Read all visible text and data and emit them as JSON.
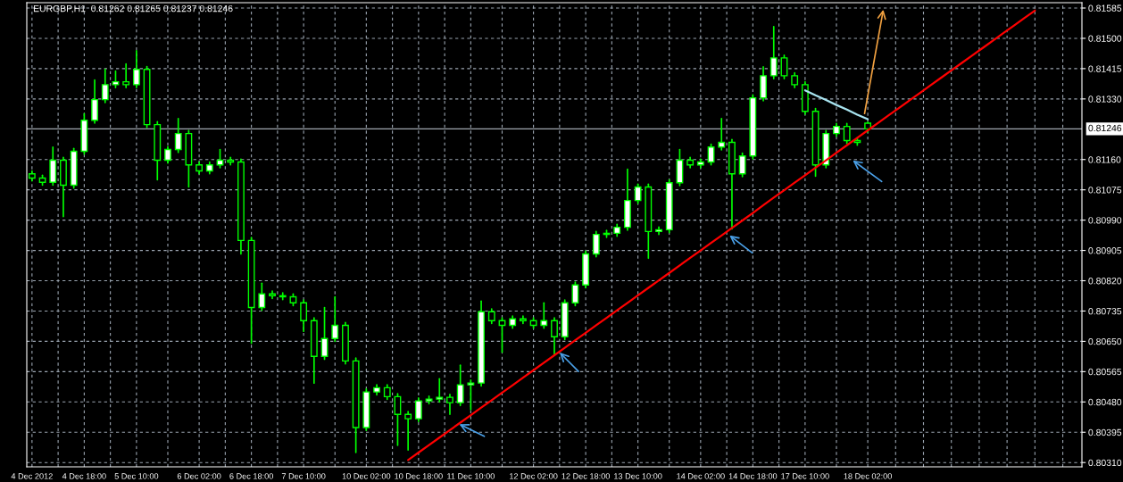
{
  "chart_data": {
    "type": "candlestick",
    "title": "EURGBP,H1  0.81262 0.81265 0.81237 0.81246",
    "categories": [
      "4 Dec 2012",
      null,
      null,
      null,
      null,
      "4 Dec 18:00",
      null,
      null,
      null,
      null,
      "5 Dec 10:00",
      null,
      null,
      null,
      null,
      null,
      "6 Dec 02:00",
      null,
      null,
      null,
      null,
      "6 Dec 18:00",
      null,
      null,
      null,
      null,
      "7 Dec 10:00",
      null,
      null,
      null,
      null,
      null,
      "10 Dec 02:00",
      null,
      null,
      null,
      null,
      "10 Dec 18:00",
      null,
      null,
      null,
      null,
      "11 Dec 10:00",
      null,
      null,
      null,
      null,
      null,
      "12 Dec 02:00",
      null,
      null,
      null,
      null,
      "12 Dec 18:00",
      null,
      null,
      null,
      null,
      "13 Dec 10:00",
      null,
      null,
      null,
      null,
      null,
      "14 Dec 02:00",
      null,
      null,
      null,
      null,
      "14 Dec 18:00",
      null,
      null,
      null,
      null,
      "17 Dec 10:00",
      null,
      null,
      null,
      null,
      null,
      "18 Dec 02:00",
      null,
      null,
      null,
      null,
      null,
      null,
      null,
      null,
      null,
      null,
      null,
      null,
      null,
      null,
      null,
      null,
      null,
      null,
      null,
      null
    ],
    "ohlc": [
      [
        0.8112,
        0.81128,
        0.811,
        0.81108
      ],
      [
        0.81108,
        0.81116,
        0.81088,
        0.81096
      ],
      [
        0.81096,
        0.81195,
        0.81088,
        0.81158
      ],
      [
        0.81158,
        0.81166,
        0.81,
        0.81088
      ],
      [
        0.81088,
        0.81191,
        0.8108,
        0.81183
      ],
      [
        0.81183,
        0.81288,
        0.81175,
        0.8127
      ],
      [
        0.8127,
        0.81383,
        0.81262,
        0.81328
      ],
      [
        0.81328,
        0.81413,
        0.8132,
        0.8137
      ],
      [
        0.8137,
        0.81408,
        0.81362,
        0.81378
      ],
      [
        0.81378,
        0.81428,
        0.81362,
        0.8137
      ],
      [
        0.8137,
        0.81465,
        0.81362,
        0.81413
      ],
      [
        0.81413,
        0.81421,
        0.8125,
        0.81258
      ],
      [
        0.81258,
        0.81266,
        0.81103,
        0.81158
      ],
      [
        0.81158,
        0.81196,
        0.8115,
        0.81188
      ],
      [
        0.81188,
        0.81275,
        0.8118,
        0.81233
      ],
      [
        0.81233,
        0.81241,
        0.81083,
        0.81145
      ],
      [
        0.81145,
        0.81153,
        0.8112,
        0.81128
      ],
      [
        0.81128,
        0.81153,
        0.8112,
        0.81145
      ],
      [
        0.81145,
        0.81188,
        0.81137,
        0.81158
      ],
      [
        0.81158,
        0.81166,
        0.81145,
        0.81153
      ],
      [
        0.81153,
        0.81161,
        0.80895,
        0.80933
      ],
      [
        0.80933,
        0.80941,
        0.80645,
        0.80745
      ],
      [
        0.80745,
        0.80813,
        0.80737,
        0.80783
      ],
      [
        0.80783,
        0.80791,
        0.8077,
        0.80778
      ],
      [
        0.80778,
        0.80786,
        0.80767,
        0.80775
      ],
      [
        0.80775,
        0.80783,
        0.8075,
        0.80758
      ],
      [
        0.80758,
        0.80766,
        0.80678,
        0.80708
      ],
      [
        0.80708,
        0.80716,
        0.80533,
        0.80608
      ],
      [
        0.80608,
        0.80745,
        0.806,
        0.80658
      ],
      [
        0.80658,
        0.80775,
        0.8065,
        0.80695
      ],
      [
        0.80695,
        0.80703,
        0.80587,
        0.80595
      ],
      [
        0.80595,
        0.80603,
        0.80338,
        0.80408
      ],
      [
        0.80408,
        0.80516,
        0.804,
        0.80508
      ],
      [
        0.80508,
        0.80528,
        0.805,
        0.8052
      ],
      [
        0.8052,
        0.80528,
        0.80487,
        0.80495
      ],
      [
        0.80495,
        0.80503,
        0.80358,
        0.80445
      ],
      [
        0.80445,
        0.80453,
        0.80345,
        0.80433
      ],
      [
        0.80433,
        0.80491,
        0.80425,
        0.80483
      ],
      [
        0.80483,
        0.80496,
        0.80475,
        0.80488
      ],
      [
        0.80488,
        0.80545,
        0.8048,
        0.80493
      ],
      [
        0.80493,
        0.80501,
        0.80445,
        0.80478
      ],
      [
        0.80478,
        0.80583,
        0.8047,
        0.80528
      ],
      [
        0.80528,
        0.80541,
        0.80458,
        0.80533
      ],
      [
        0.80533,
        0.80763,
        0.80525,
        0.80733
      ],
      [
        0.80733,
        0.80741,
        0.807,
        0.80708
      ],
      [
        0.80708,
        0.80716,
        0.8062,
        0.80695
      ],
      [
        0.80695,
        0.80721,
        0.80687,
        0.80713
      ],
      [
        0.80713,
        0.80721,
        0.807,
        0.80708
      ],
      [
        0.80708,
        0.80716,
        0.80687,
        0.80695
      ],
      [
        0.80695,
        0.80758,
        0.80687,
        0.80708
      ],
      [
        0.80708,
        0.80716,
        0.80613,
        0.80663
      ],
      [
        0.80663,
        0.80766,
        0.80655,
        0.80758
      ],
      [
        0.80758,
        0.80816,
        0.8075,
        0.80808
      ],
      [
        0.80808,
        0.80903,
        0.808,
        0.80895
      ],
      [
        0.80895,
        0.80958,
        0.80887,
        0.8095
      ],
      [
        0.8095,
        0.80961,
        0.80942,
        0.80953
      ],
      [
        0.80953,
        0.80978,
        0.80945,
        0.8097
      ],
      [
        0.8097,
        0.81133,
        0.80962,
        0.81045
      ],
      [
        0.81045,
        0.81091,
        0.81037,
        0.81083
      ],
      [
        0.81083,
        0.81091,
        0.80883,
        0.80958
      ],
      [
        0.80958,
        0.80971,
        0.8095,
        0.80963
      ],
      [
        0.80963,
        0.81103,
        0.80955,
        0.81095
      ],
      [
        0.81095,
        0.81188,
        0.81087,
        0.81158
      ],
      [
        0.81158,
        0.81166,
        0.81137,
        0.81145
      ],
      [
        0.81145,
        0.81161,
        0.81137,
        0.81153
      ],
      [
        0.81153,
        0.81203,
        0.81145,
        0.81195
      ],
      [
        0.81195,
        0.81275,
        0.81187,
        0.81208
      ],
      [
        0.81208,
        0.81216,
        0.80965,
        0.8112
      ],
      [
        0.8112,
        0.81178,
        0.81112,
        0.8117
      ],
      [
        0.8117,
        0.81341,
        0.81162,
        0.81333
      ],
      [
        0.81333,
        0.8142,
        0.81325,
        0.81395
      ],
      [
        0.81395,
        0.81533,
        0.81387,
        0.81445
      ],
      [
        0.81445,
        0.81453,
        0.81387,
        0.81395
      ],
      [
        0.81395,
        0.81403,
        0.81362,
        0.8137
      ],
      [
        0.8137,
        0.81378,
        0.81287,
        0.81295
      ],
      [
        0.81295,
        0.81303,
        0.81113,
        0.81145
      ],
      [
        0.81145,
        0.81241,
        0.81137,
        0.81233
      ],
      [
        0.81233,
        0.81261,
        0.81225,
        0.81253
      ],
      [
        0.81253,
        0.81261,
        0.81205,
        0.81213
      ],
      [
        0.81213,
        0.81221,
        0.812,
        0.81208
      ],
      [
        0.81262,
        0.81265,
        0.81237,
        0.81246
      ],
      null,
      null,
      null,
      null,
      null,
      null,
      null,
      null,
      null,
      null,
      null,
      null,
      null,
      null,
      null,
      null,
      null,
      null,
      null,
      null
    ],
    "series": [
      {
        "type": "line",
        "color": "#ff0000",
        "values": [
          null,
          null,
          null,
          null,
          null,
          null,
          null,
          null,
          null,
          null,
          null,
          null,
          null,
          null,
          null,
          null,
          null,
          null,
          null,
          null,
          null,
          null,
          null,
          null,
          null,
          null,
          null,
          null,
          null,
          null,
          null,
          null,
          null,
          null,
          null,
          null,
          0.80317,
          0.80338,
          0.80359,
          0.8038,
          0.80401,
          0.80422,
          0.80443,
          0.80464,
          0.80485,
          0.80506,
          0.80527,
          0.80548,
          0.80569,
          0.8059,
          0.80611,
          0.80632,
          0.80653,
          0.80674,
          0.80695,
          0.80716,
          0.80737,
          0.80758,
          0.80779,
          0.808,
          0.80821,
          0.80842,
          0.80863,
          0.80884,
          0.80905,
          0.80926,
          0.80947,
          0.80968,
          0.80989,
          0.8101,
          0.81032,
          0.81053,
          0.81074,
          0.81095,
          0.81116,
          0.81137,
          0.81158,
          0.81179,
          0.812,
          0.81221,
          0.81242,
          0.81263,
          0.81284,
          0.81305,
          0.81326,
          0.81347,
          0.81368,
          0.81389,
          0.8141,
          0.81431,
          0.81452,
          0.81473,
          0.81494,
          0.81515,
          0.81536,
          0.81557,
          0.81578,
          null,
          null,
          null,
          null
        ]
      },
      {
        "type": "line",
        "color": "#a8e4f0",
        "values": [
          null,
          null,
          null,
          null,
          null,
          null,
          null,
          null,
          null,
          null,
          null,
          null,
          null,
          null,
          null,
          null,
          null,
          null,
          null,
          null,
          null,
          null,
          null,
          null,
          null,
          null,
          null,
          null,
          null,
          null,
          null,
          null,
          null,
          null,
          null,
          null,
          null,
          null,
          null,
          null,
          null,
          null,
          null,
          null,
          null,
          null,
          null,
          null,
          null,
          null,
          null,
          null,
          null,
          null,
          null,
          null,
          null,
          null,
          null,
          null,
          null,
          null,
          null,
          null,
          null,
          null,
          null,
          null,
          null,
          null,
          null,
          null,
          null,
          null,
          0.81354,
          0.8134,
          0.81327,
          0.81313,
          0.813,
          0.81286,
          0.81273,
          null,
          null,
          null,
          null,
          null,
          null,
          null,
          null,
          null,
          null,
          null,
          null,
          null,
          null,
          null,
          null,
          null,
          null,
          null,
          null
        ]
      }
    ],
    "ylim": [
      0.80298,
      0.816
    ],
    "yticks": [
      {
        "value": 0.8031,
        "label": "0.80310"
      },
      {
        "value": 0.80395,
        "label": "0.80395"
      },
      {
        "value": 0.8048,
        "label": "0.80480"
      },
      {
        "value": 0.80565,
        "label": "0.80565"
      },
      {
        "value": 0.8065,
        "label": "0.80650"
      },
      {
        "value": 0.80735,
        "label": "0.80735"
      },
      {
        "value": 0.8082,
        "label": "0.80820"
      },
      {
        "value": 0.80905,
        "label": "0.80905"
      },
      {
        "value": 0.8099,
        "label": "0.80990"
      },
      {
        "value": 0.81075,
        "label": "0.81075"
      },
      {
        "value": 0.8116,
        "label": "0.81160"
      },
      {
        "value": 0.8133,
        "label": "0.81330"
      },
      {
        "value": 0.81415,
        "label": "0.81415"
      },
      {
        "value": 0.815,
        "label": "0.81500"
      },
      {
        "value": 0.81585,
        "label": "0.81585"
      }
    ],
    "ref_lines": [
      {
        "axis": "y",
        "value": 0.81246,
        "label": "0.81246",
        "color": "#a0a8b0"
      }
    ],
    "grid": true
  }
}
